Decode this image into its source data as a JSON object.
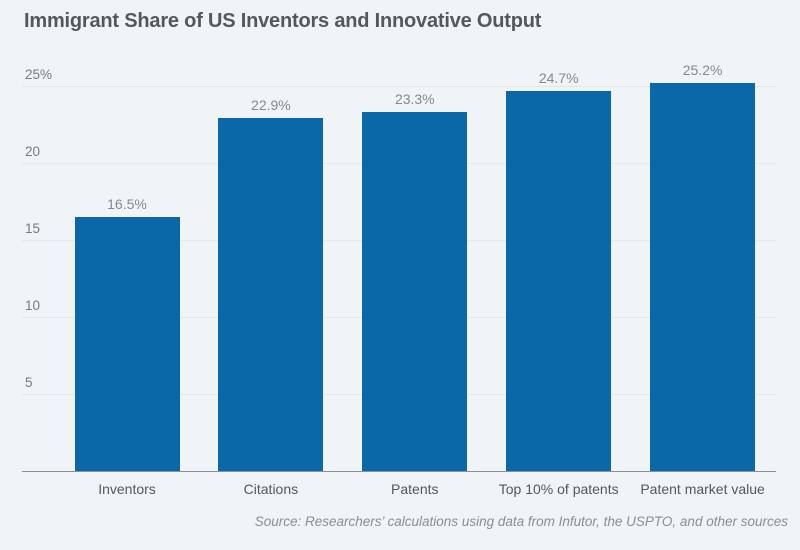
{
  "chart_data": {
    "type": "bar",
    "title": "Immigrant Share of US Inventors and Innovative Output",
    "categories": [
      "Inventors",
      "Citations",
      "Patents",
      "Top 10% of patents",
      "Patent market value"
    ],
    "values": [
      16.5,
      22.9,
      23.3,
      24.7,
      25.2
    ],
    "value_labels": [
      "16.5%",
      "22.9%",
      "23.3%",
      "24.7%",
      "25.2%"
    ],
    "y_ticks": [
      {
        "value": 25,
        "label": "25%"
      },
      {
        "value": 20,
        "label": "20"
      },
      {
        "value": 15,
        "label": "15"
      },
      {
        "value": 10,
        "label": "10"
      },
      {
        "value": 5,
        "label": "5"
      }
    ],
    "ylim": [
      0,
      25
    ],
    "grid": "horizontal",
    "legend": "none",
    "bar_color": "#0a67a8",
    "background_color": "#f0f4f7",
    "source_note": "Source: Researchers’ calculations using data from Infutor, the USPTO, and other sources"
  }
}
